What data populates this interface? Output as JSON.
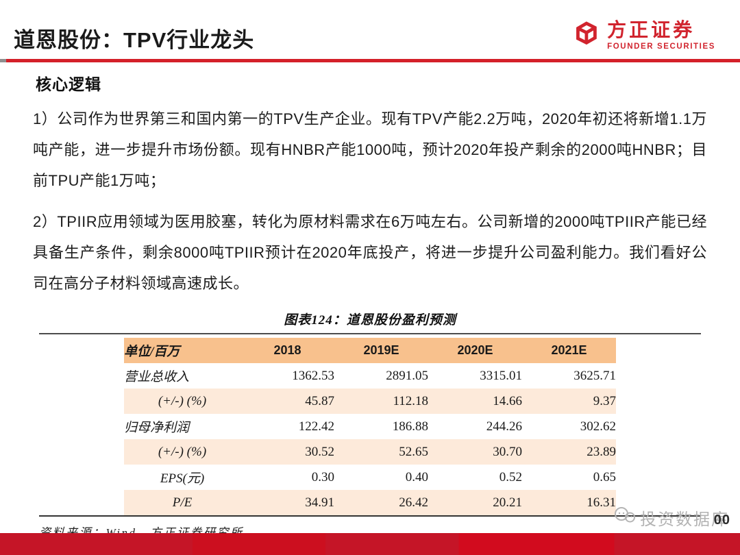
{
  "header": {
    "title": "道恩股份：TPV行业龙头",
    "logo": {
      "cn": "方正证券",
      "en": "FOUNDER SECURITIES"
    }
  },
  "content": {
    "section_heading": "核心逻辑",
    "paragraphs": [
      "1）公司作为世界第三和国内第一的TPV生产企业。现有TPV产能2.2万吨，2020年初还将新增1.1万吨产能，进一步提升市场份额。现有HNBR产能1000吨，预计2020年投产剩余的2000吨HNBR；目前TPU产能1万吨；",
      "2）TPIIR应用领域为医用胶塞，转化为原材料需求在6万吨左右。公司新增的2000吨TPIIR产能已经具备生产条件，剩余8000吨TPIIR预计在2020年底投产，将进一步提升公司盈利能力。我们看好公司在高分子材料领域高速成长。"
    ]
  },
  "figure": {
    "title": "图表124：道恩股份盈利预测",
    "source": "资料来源：Wind，方正证券研究所"
  },
  "chart_data": {
    "type": "table",
    "title": "图表124：道恩股份盈利预测",
    "columns": [
      "单位/百万",
      "2018",
      "2019E",
      "2020E",
      "2021E"
    ],
    "rows": [
      {
        "label": "营业总收入",
        "indent": false,
        "values": [
          "1362.53",
          "2891.05",
          "3315.01",
          "3625.71"
        ]
      },
      {
        "label": "(+/-) (%)",
        "indent": true,
        "values": [
          "45.87",
          "112.18",
          "14.66",
          "9.37"
        ]
      },
      {
        "label": "归母净利润",
        "indent": false,
        "values": [
          "122.42",
          "186.88",
          "244.26",
          "302.62"
        ]
      },
      {
        "label": "(+/-) (%)",
        "indent": true,
        "values": [
          "30.52",
          "52.65",
          "30.70",
          "23.89"
        ]
      },
      {
        "label": "EPS(元)",
        "indent": true,
        "values": [
          "0.30",
          "0.40",
          "0.52",
          "0.65"
        ]
      },
      {
        "label": "P/E",
        "indent": true,
        "values": [
          "34.91",
          "26.42",
          "20.21",
          "16.31"
        ]
      }
    ]
  },
  "footer": {
    "watermark_text": "投资数据库",
    "page_number": "00"
  },
  "icons": {
    "logo": "cube-outline-icon",
    "watermark": "chat-faces-icon"
  },
  "colors": {
    "accent_red": "#d42029",
    "logo_red": "#d1242e",
    "table_header": "#f8c18d",
    "table_stripe": "#fdeada",
    "bottom_bar_red": "#cc0f1f",
    "watermark_gray": "#b3b3b3"
  }
}
